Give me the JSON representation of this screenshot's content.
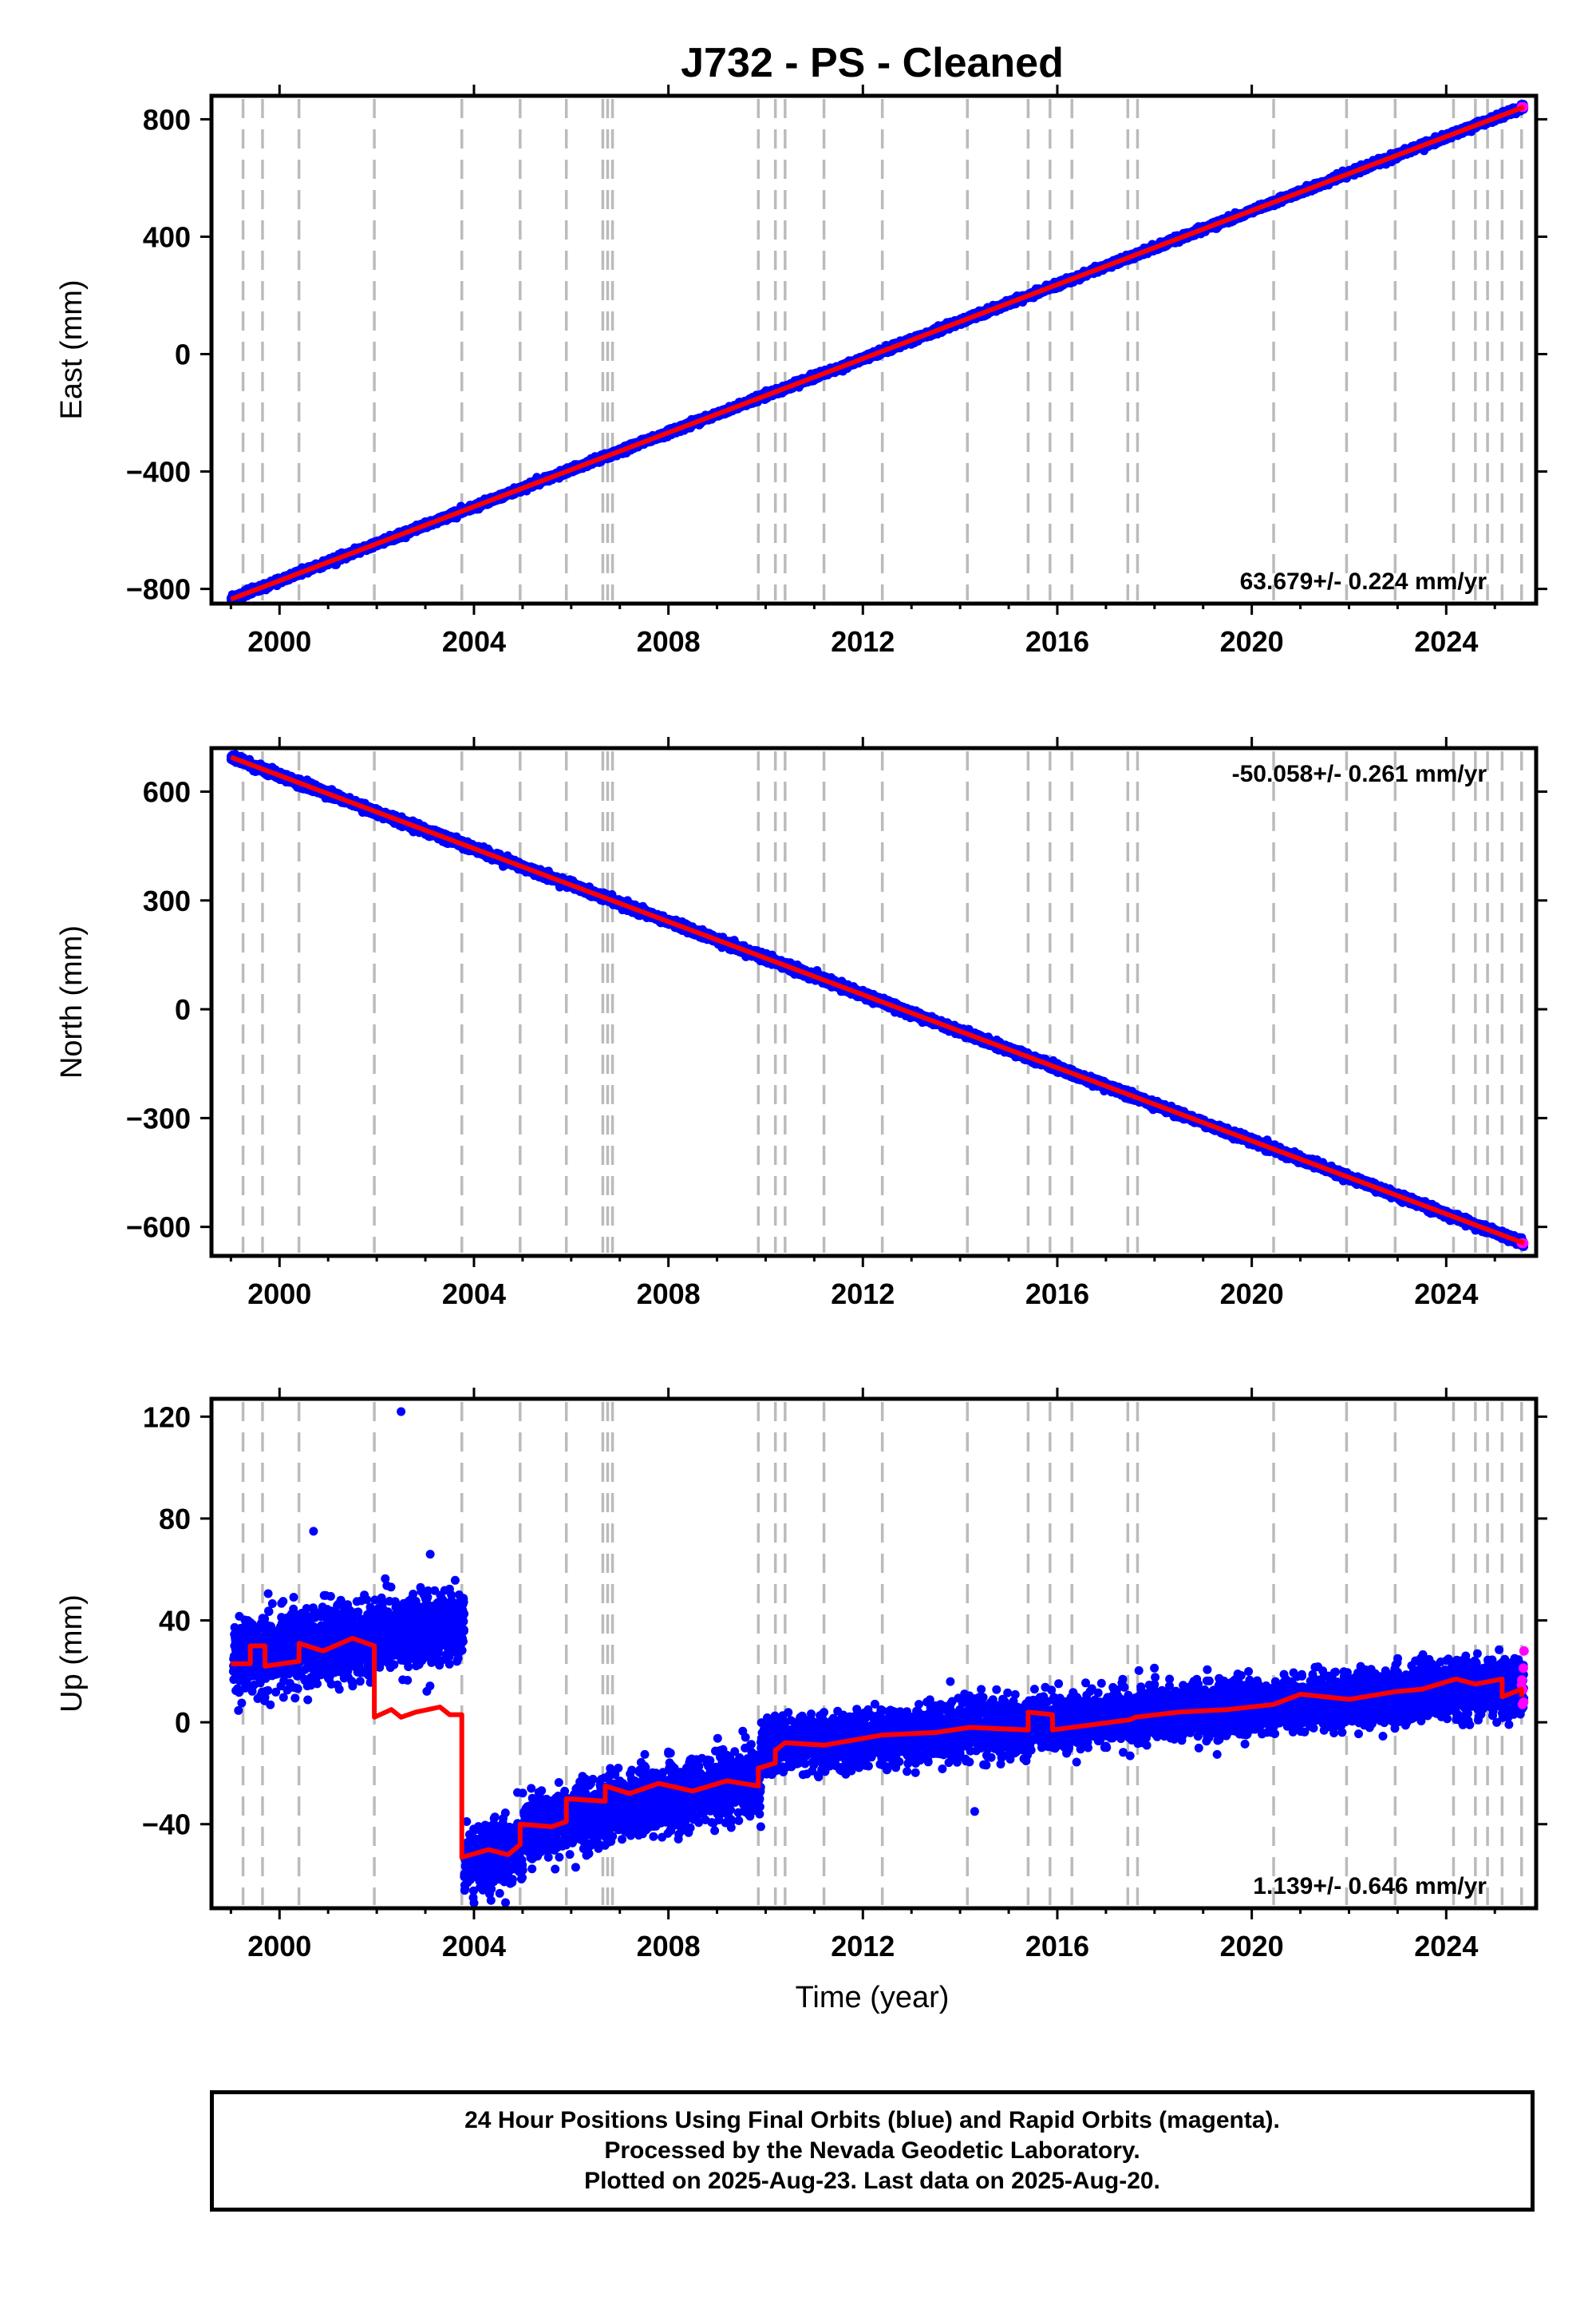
{
  "colors": {
    "final": "#0000ff",
    "rapid": "#ff00ff",
    "model": "#ff0000",
    "event": "#bbbbbb"
  },
  "chart_data": {
    "title": "J732  - PS - Cleaned",
    "type": "scatter",
    "xlabel": "Time (year)",
    "xlim": [
      1998.6,
      2025.85
    ],
    "xticks": [
      2000,
      2004,
      2008,
      2012,
      2016,
      2020,
      2024
    ],
    "event_lines": [
      1999.25,
      1999.65,
      2000.4,
      2001.95,
      2003.75,
      2004.95,
      2005.9,
      2006.65,
      2006.75,
      2006.85,
      2009.85,
      2010.2,
      2010.4,
      2011.2,
      2012.4,
      2014.15,
      2015.4,
      2015.85,
      2016.3,
      2017.45,
      2017.65,
      2020.45,
      2021.95,
      2022.95,
      2024.15,
      2024.6,
      2024.85,
      2025.15,
      2025.55
    ],
    "panels": [
      {
        "name": "East",
        "ylabel": "East (mm)",
        "ylim": [
          -850,
          880
        ],
        "yticks": [
          -800,
          -400,
          0,
          400,
          800
        ],
        "rate": "63.679+/- 0.224 mm/yr",
        "start": [
          1999.0,
          -835
        ],
        "end": [
          2025.6,
          842
        ],
        "noise": 5
      },
      {
        "name": "North",
        "ylabel": "North (mm)",
        "ylim": [
          -680,
          720
        ],
        "yticks": [
          -600,
          -300,
          0,
          300,
          600
        ],
        "rate": "-50.058+/- 0.261 mm/yr",
        "start": [
          1999.0,
          695
        ],
        "end": [
          2025.6,
          -645
        ],
        "noise": 5
      },
      {
        "name": "Up",
        "ylabel": "Up (mm)",
        "ylim": [
          -73,
          127
        ],
        "yticks": [
          -40,
          0,
          40,
          80,
          120
        ],
        "rate": "1.139+/- 0.646 mm/yr",
        "model": [
          [
            1999.0,
            23
          ],
          [
            1999.4,
            23
          ],
          [
            1999.4,
            30
          ],
          [
            1999.7,
            30
          ],
          [
            1999.7,
            22
          ],
          [
            2000.4,
            24
          ],
          [
            2000.4,
            31
          ],
          [
            2000.9,
            28
          ],
          [
            2001.5,
            33
          ],
          [
            2001.95,
            30
          ],
          [
            2001.95,
            2
          ],
          [
            2002.3,
            5
          ],
          [
            2002.5,
            2
          ],
          [
            2002.8,
            4
          ],
          [
            2003.3,
            6
          ],
          [
            2003.5,
            3
          ],
          [
            2003.75,
            3
          ],
          [
            2003.75,
            -53
          ],
          [
            2004.3,
            -50
          ],
          [
            2004.7,
            -52
          ],
          [
            2004.95,
            -48
          ],
          [
            2004.95,
            -40
          ],
          [
            2005.6,
            -41
          ],
          [
            2005.9,
            -39
          ],
          [
            2005.9,
            -30
          ],
          [
            2006.7,
            -31
          ],
          [
            2006.7,
            -25
          ],
          [
            2007.2,
            -28
          ],
          [
            2007.8,
            -24
          ],
          [
            2008.5,
            -27
          ],
          [
            2009.2,
            -23
          ],
          [
            2009.85,
            -25
          ],
          [
            2009.85,
            -18
          ],
          [
            2010.2,
            -16
          ],
          [
            2010.2,
            -11
          ],
          [
            2010.4,
            -8
          ],
          [
            2011.2,
            -9
          ],
          [
            2012.4,
            -5
          ],
          [
            2013.5,
            -4
          ],
          [
            2014.2,
            -2
          ],
          [
            2015.4,
            -3
          ],
          [
            2015.4,
            4
          ],
          [
            2015.9,
            3
          ],
          [
            2015.9,
            -3
          ],
          [
            2017.5,
            1
          ],
          [
            2017.6,
            2
          ],
          [
            2018.5,
            4
          ],
          [
            2019.5,
            5
          ],
          [
            2020.45,
            7
          ],
          [
            2021.0,
            11
          ],
          [
            2022.0,
            9
          ],
          [
            2022.95,
            12
          ],
          [
            2023.5,
            13
          ],
          [
            2024.2,
            17
          ],
          [
            2024.6,
            15
          ],
          [
            2025.15,
            17
          ],
          [
            2025.15,
            10
          ],
          [
            2025.55,
            13
          ],
          [
            2025.55,
            10
          ]
        ],
        "data_segments": [
          {
            "x": [
              1999.05,
              2003.8
            ],
            "mean": [
              25,
              38
            ],
            "sd": 7
          },
          {
            "x": [
              2003.8,
              2005.0
            ],
            "mean": [
              -55,
              -50
            ],
            "sd": 6
          },
          {
            "x": [
              2005.0,
              2009.9
            ],
            "mean": [
              -42,
              -22
            ],
            "sd": 6
          },
          {
            "x": [
              2009.9,
              2025.6
            ],
            "mean": [
              -10,
              15
            ],
            "sd": 5
          }
        ],
        "outliers": [
          [
            2002.5,
            122
          ],
          [
            2000.7,
            75
          ],
          [
            2003.1,
            66
          ],
          [
            2013.8,
            16
          ],
          [
            2014.3,
            -35
          ],
          [
            2009.9,
            -41
          ]
        ]
      }
    ]
  },
  "footer": {
    "line1": "24 Hour Positions Using Final Orbits (blue) and Rapid Orbits (magenta).",
    "line2": "Processed by the Nevada Geodetic Laboratory.",
    "line3": "Plotted on 2025-Aug-23. Last data on 2025-Aug-20."
  }
}
